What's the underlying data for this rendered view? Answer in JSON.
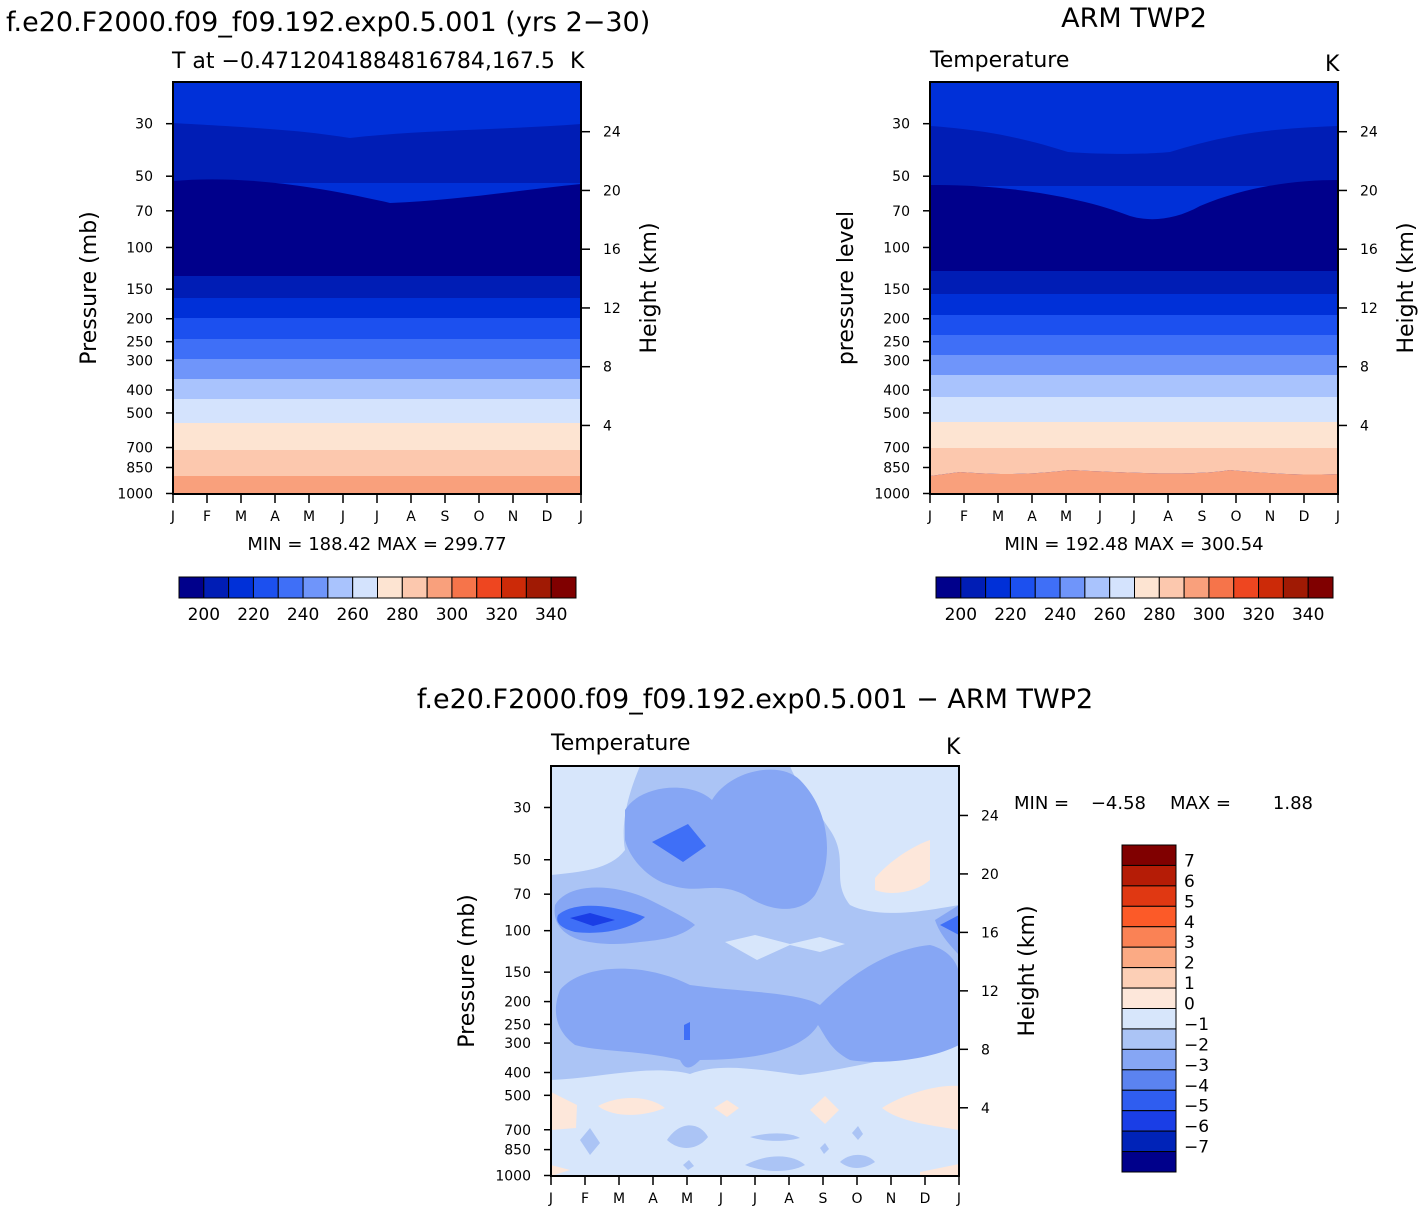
{
  "figure": {
    "months": [
      "J",
      "F",
      "M",
      "A",
      "M",
      "J",
      "J",
      "A",
      "S",
      "O",
      "N",
      "D",
      "J"
    ],
    "pressure_ticks": [
      30,
      50,
      70,
      100,
      150,
      200,
      250,
      300,
      400,
      500,
      700,
      850,
      1000
    ],
    "height_ticks": [
      24,
      20,
      16,
      12,
      8,
      4
    ],
    "shared_colorbar_labels": [
      "200",
      "220",
      "240",
      "260",
      "280",
      "300",
      "320",
      "340"
    ],
    "shared_colorbar_colors": [
      "#00008b",
      "#001db5",
      "#0030d8",
      "#1c50ef",
      "#3f6ff7",
      "#6f95fa",
      "#a9c3fd",
      "#d4e3fd",
      "#fde4d2",
      "#fcc8ae",
      "#f9a07c",
      "#f6744a",
      "#ee4620",
      "#cc2a08",
      "#a01a04",
      "#800000"
    ],
    "diff_colorbar_labels": [
      "7",
      "6",
      "5",
      "4",
      "3",
      "2",
      "1",
      "0",
      "−1",
      "−2",
      "−3",
      "−4",
      "−5",
      "−6",
      "−7"
    ],
    "diff_colorbar_colors": [
      "#800000",
      "#b51c06",
      "#e03812",
      "#fc5a28",
      "#fa8255",
      "#fbaa84",
      "#fccfb6",
      "#fde7da",
      "#d7e6fb",
      "#abc4f5",
      "#86a6f4",
      "#5b83f0",
      "#2f5df0",
      "#1a3ee6",
      "#0023b8",
      "#00008b"
    ]
  },
  "chart_data": [
    {
      "type": "heatmap",
      "title": "f.e20.F2000.f09_f09.192.exp0.5.001 (yrs 2−30)",
      "subtitle_left": "T at −0.4712041884816784,167.5",
      "subtitle_right": "K",
      "ylabel": "Pressure (mb)",
      "y2label": "Height (km)",
      "stats": "MIN = 188.42  MAX = 299.77",
      "min": 188.42,
      "max": 299.77,
      "y_scale": "log",
      "levels": [
        200,
        210,
        220,
        230,
        240,
        250,
        260,
        270,
        280,
        290,
        300,
        310,
        320,
        330,
        340
      ]
    },
    {
      "type": "heatmap",
      "title": "ARM TWP2",
      "subtitle_left": "Temperature",
      "subtitle_right": "K",
      "ylabel": "pressure level",
      "y2label": "Height (km)",
      "stats": "MIN = 192.48  MAX = 300.54",
      "min": 192.48,
      "max": 300.54,
      "y_scale": "log",
      "levels": [
        200,
        210,
        220,
        230,
        240,
        250,
        260,
        270,
        280,
        290,
        300,
        310,
        320,
        330,
        340
      ]
    },
    {
      "type": "heatmap",
      "title": "f.e20.F2000.f09_f09.192.exp0.5.001 − ARM TWP2",
      "subtitle_left": "Temperature",
      "subtitle_right": "K",
      "ylabel": "Pressure (mb)",
      "y2label": "Height (km)",
      "stats_min_label": "MIN =",
      "stats_min_value": "−4.58",
      "stats_max_label": "MAX =",
      "stats_max_value": "1.88",
      "min": -4.58,
      "max": 1.88,
      "y_scale": "log",
      "levels": [
        -7,
        -6,
        -5,
        -4,
        -3,
        -2,
        -1,
        0,
        1,
        2,
        3,
        4,
        5,
        6,
        7
      ]
    }
  ]
}
